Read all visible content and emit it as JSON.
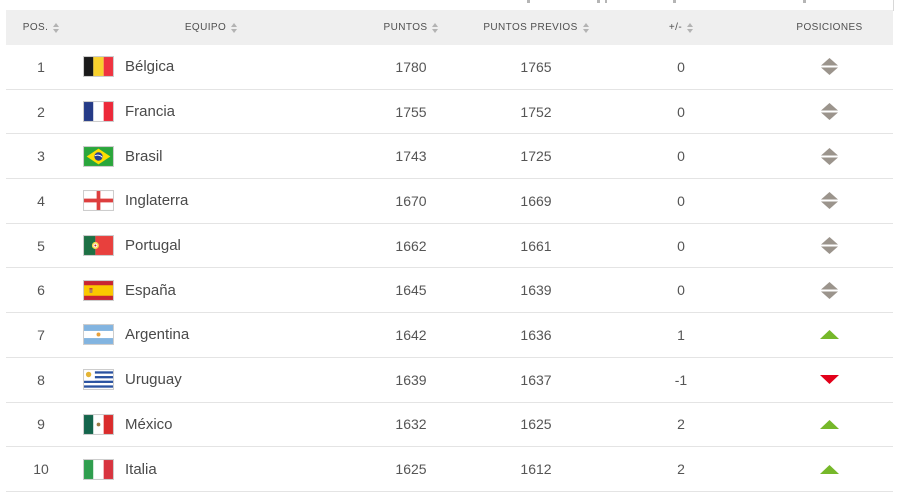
{
  "table": {
    "columns": [
      {
        "label": "POS.",
        "sortable": true
      },
      {
        "label": "EQUIPO",
        "sortable": true
      },
      {
        "label": "PUNTOS",
        "sortable": true
      },
      {
        "label": "PUNTOS PREVIOS",
        "sortable": true
      },
      {
        "label": "+/-",
        "sortable": true
      },
      {
        "label": "POSICIONES",
        "sortable": false
      }
    ],
    "rows": [
      {
        "pos": "1",
        "team": "Bélgica",
        "flag": "belgium-flag",
        "puntos": "1780",
        "puntos_previos": "1765",
        "delta": "0",
        "movement": "none"
      },
      {
        "pos": "2",
        "team": "Francia",
        "flag": "france-flag",
        "puntos": "1755",
        "puntos_previos": "1752",
        "delta": "0",
        "movement": "none"
      },
      {
        "pos": "3",
        "team": "Brasil",
        "flag": "brazil-flag",
        "puntos": "1743",
        "puntos_previos": "1725",
        "delta": "0",
        "movement": "none"
      },
      {
        "pos": "4",
        "team": "Inglaterra",
        "flag": "england-flag",
        "puntos": "1670",
        "puntos_previos": "1669",
        "delta": "0",
        "movement": "none"
      },
      {
        "pos": "5",
        "team": "Portugal",
        "flag": "portugal-flag",
        "puntos": "1662",
        "puntos_previos": "1661",
        "delta": "0",
        "movement": "none"
      },
      {
        "pos": "6",
        "team": "España",
        "flag": "spain-flag",
        "puntos": "1645",
        "puntos_previos": "1639",
        "delta": "0",
        "movement": "none"
      },
      {
        "pos": "7",
        "team": "Argentina",
        "flag": "argentina-flag",
        "puntos": "1642",
        "puntos_previos": "1636",
        "delta": "1",
        "movement": "up"
      },
      {
        "pos": "8",
        "team": "Uruguay",
        "flag": "uruguay-flag",
        "puntos": "1639",
        "puntos_previos": "1637",
        "delta": "-1",
        "movement": "down"
      },
      {
        "pos": "9",
        "team": "México",
        "flag": "mexico-flag",
        "puntos": "1632",
        "puntos_previos": "1625",
        "delta": "2",
        "movement": "up"
      },
      {
        "pos": "10",
        "team": "Italia",
        "flag": "italy-flag",
        "puntos": "1625",
        "puntos_previos": "1612",
        "delta": "2",
        "movement": "up"
      }
    ]
  },
  "icons": {
    "sort": "sort-arrows (▲▼ stacked, gray)",
    "movement_up": "up-triangle ▲",
    "movement_down": "down-triangle ▼",
    "movement_none": "up-down-diamond ◆"
  },
  "colors": {
    "movement_up": "#76b82a",
    "movement_down": "#e2001a",
    "movement_none": "#9b948c",
    "header_bg": "#efefef",
    "row_border": "#e4e4e4",
    "text": "#555555"
  }
}
